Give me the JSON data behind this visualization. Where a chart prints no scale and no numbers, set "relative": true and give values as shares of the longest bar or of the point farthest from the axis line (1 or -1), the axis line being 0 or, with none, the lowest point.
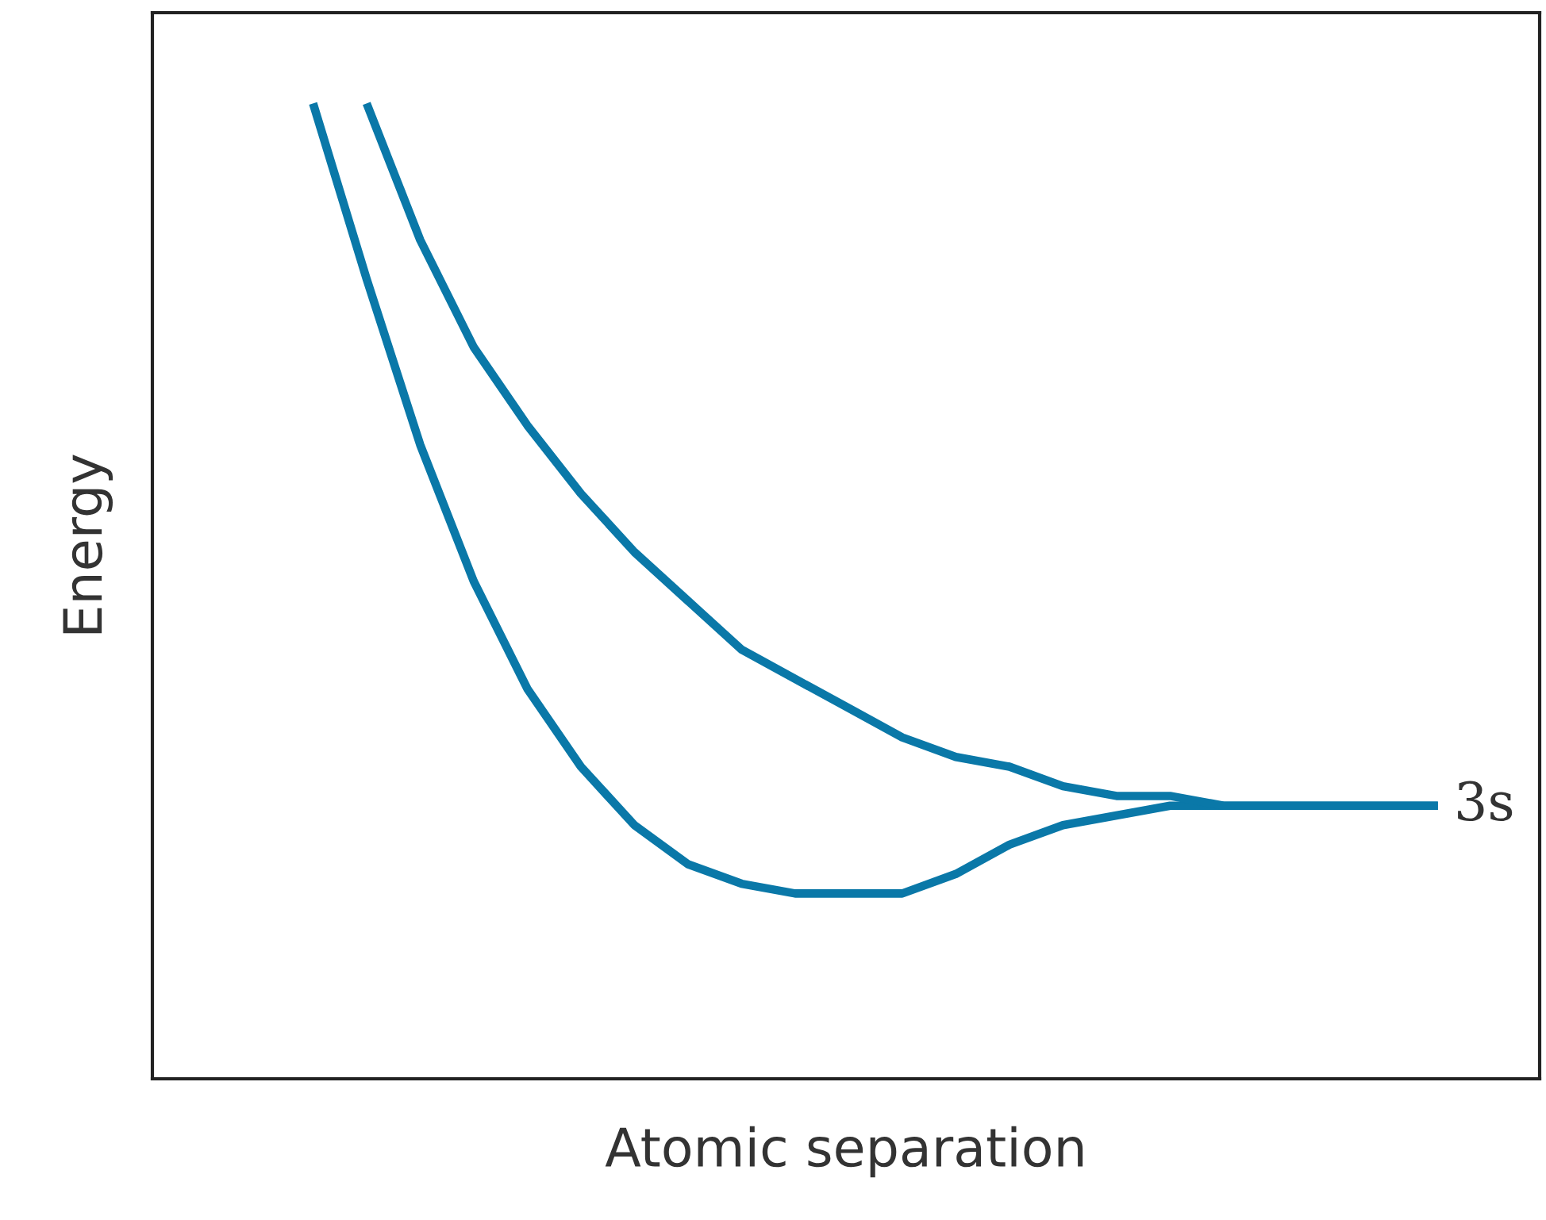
{
  "chart_data": {
    "type": "line",
    "relative": true,
    "xlabel": "Atomic separation",
    "ylabel": "Energy",
    "annotations": [
      "3s"
    ],
    "categories": [
      null,
      null,
      null,
      null,
      null,
      null,
      null,
      null,
      null,
      null,
      null,
      null,
      null,
      null,
      null,
      null,
      null,
      null,
      null,
      null,
      null,
      null
    ],
    "series": [
      {
        "color": "#0a78a8",
        "values": [
          1.0,
          0.82,
          0.65,
          0.51,
          0.4,
          0.32,
          0.26,
          0.22,
          0.2,
          0.19,
          0.19,
          0.19,
          0.21,
          0.24,
          0.26,
          0.27,
          0.28,
          0.28,
          0.28,
          0.28,
          0.28,
          0.28
        ]
      },
      {
        "color": "#0a78a8",
        "values": [
          null,
          1.0,
          0.86,
          0.75,
          0.67,
          0.6,
          0.54,
          0.49,
          0.44,
          0.41,
          0.38,
          0.35,
          0.33,
          0.32,
          0.3,
          0.29,
          0.29,
          0.28,
          0.28,
          0.28,
          0.28,
          0.28
        ]
      }
    ],
    "grid": false,
    "legend": false,
    "marker": "none",
    "line_style": "solid"
  }
}
